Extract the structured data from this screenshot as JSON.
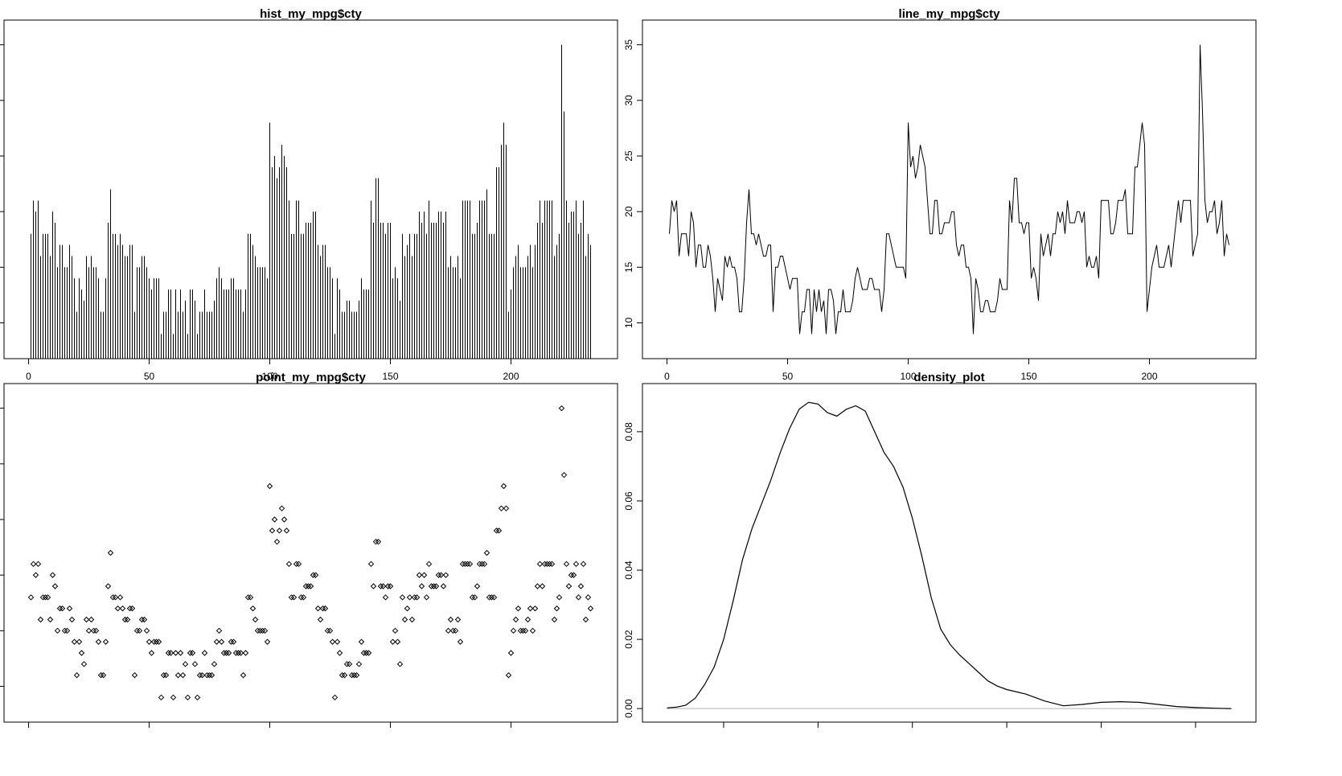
{
  "panels": {
    "hist": {
      "title": "hist_my_mpg$cty"
    },
    "line": {
      "title": "line_my_mpg$cty"
    },
    "point": {
      "title": "point_my_mpg$cty"
    },
    "density": {
      "title": "density_plot"
    }
  },
  "chart_data": [
    {
      "type": "bar",
      "title": "hist_my_mpg$cty",
      "x_source": "index",
      "series_ref": "cty",
      "xlim": [
        0,
        234
      ],
      "ylim": [
        8,
        36
      ],
      "x_ticks": [
        0,
        50,
        100,
        150,
        200
      ],
      "y_ticks": [],
      "x_tick_labels": [
        "0",
        "50",
        "100",
        "150",
        "200"
      ]
    },
    {
      "type": "line",
      "title": "line_my_mpg$cty",
      "x_source": "index",
      "series_ref": "cty",
      "xlim": [
        0,
        234
      ],
      "ylim": [
        8,
        36
      ],
      "x_ticks": [
        0,
        50,
        100,
        150,
        200
      ],
      "y_ticks": [
        10,
        15,
        20,
        25,
        30,
        35
      ],
      "x_tick_labels": [
        "0",
        "50",
        "100",
        "150",
        "200"
      ],
      "y_tick_labels": [
        "10",
        "15",
        "20",
        "25",
        "30",
        "35"
      ]
    },
    {
      "type": "scatter",
      "title": "point_my_mpg$cty",
      "x_source": "index",
      "series_ref": "cty",
      "xlim": [
        0,
        234
      ],
      "ylim": [
        8,
        36
      ],
      "x_ticks": [
        0,
        50,
        100,
        150,
        200
      ],
      "y_ticks": [],
      "marker": "diamond"
    },
    {
      "type": "area",
      "title": "density_plot",
      "xlim": [
        7.0,
        36.9
      ],
      "ylim": [
        0,
        0.09
      ],
      "x_ticks": [],
      "y_ticks": [
        0.0,
        0.02,
        0.04,
        0.06,
        0.08
      ],
      "y_tick_labels": [
        "0.00",
        "0.02",
        "0.04",
        "0.06",
        "0.08"
      ],
      "baseline_color": "#b0b0b0",
      "x": [
        7.0,
        7.5,
        8.0,
        8.5,
        9.0,
        9.5,
        10.0,
        10.5,
        11.0,
        11.5,
        12.0,
        12.5,
        13.0,
        13.5,
        14.0,
        14.5,
        15.0,
        15.5,
        16.0,
        16.5,
        17.0,
        17.5,
        18.0,
        18.5,
        19.0,
        19.5,
        20.0,
        20.5,
        21.0,
        21.5,
        22.0,
        22.5,
        23.0,
        23.5,
        24.0,
        24.5,
        25.0,
        26.0,
        27.0,
        28.0,
        29.0,
        30.0,
        31.0,
        32.0,
        33.0,
        34.0,
        35.0,
        36.0,
        36.9
      ],
      "y": [
        0.0002,
        0.0004,
        0.001,
        0.003,
        0.007,
        0.012,
        0.02,
        0.031,
        0.043,
        0.052,
        0.059,
        0.066,
        0.074,
        0.081,
        0.0865,
        0.0885,
        0.088,
        0.0855,
        0.0845,
        0.0865,
        0.0875,
        0.086,
        0.08,
        0.074,
        0.07,
        0.064,
        0.055,
        0.044,
        0.032,
        0.023,
        0.0185,
        0.0155,
        0.013,
        0.0105,
        0.008,
        0.0065,
        0.0055,
        0.0042,
        0.0022,
        0.0008,
        0.0012,
        0.0018,
        0.002,
        0.0018,
        0.0012,
        0.0006,
        0.0003,
        0.0001,
        0.0
      ]
    }
  ],
  "cty": [
    18,
    21,
    20,
    21,
    16,
    18,
    18,
    18,
    16,
    20,
    19,
    15,
    17,
    17,
    15,
    15,
    17,
    16,
    14,
    11,
    14,
    13,
    12,
    16,
    15,
    16,
    15,
    15,
    14,
    11,
    11,
    14,
    19,
    22,
    18,
    18,
    17,
    18,
    17,
    16,
    16,
    17,
    17,
    11,
    15,
    15,
    16,
    16,
    15,
    14,
    13,
    14,
    14,
    14,
    9,
    11,
    11,
    13,
    13,
    9,
    13,
    11,
    13,
    11,
    12,
    9,
    13,
    13,
    12,
    9,
    11,
    11,
    13,
    11,
    11,
    11,
    12,
    14,
    15,
    14,
    13,
    13,
    13,
    14,
    14,
    13,
    13,
    13,
    11,
    13,
    18,
    18,
    17,
    16,
    15,
    15,
    15,
    15,
    14,
    28,
    24,
    25,
    23,
    24,
    26,
    25,
    24,
    21,
    18,
    18,
    21,
    21,
    18,
    18,
    19,
    19,
    19,
    20,
    20,
    17,
    16,
    17,
    17,
    15,
    15,
    14,
    9,
    14,
    13,
    11,
    11,
    12,
    12,
    11,
    11,
    11,
    12,
    14,
    13,
    13,
    13,
    21,
    19,
    23,
    23,
    19,
    19,
    18,
    19,
    19,
    14,
    15,
    14,
    12,
    18,
    16,
    17,
    18,
    16,
    18,
    18,
    20,
    19,
    20,
    18,
    21,
    19,
    19,
    19,
    20,
    20,
    19,
    20,
    15,
    16,
    15,
    15,
    16,
    14,
    21,
    21,
    21,
    21,
    18,
    18,
    19,
    21,
    21,
    21,
    22,
    18,
    18,
    18,
    24,
    24,
    26,
    28,
    26,
    11,
    13,
    15,
    16,
    17,
    15,
    15,
    15,
    16,
    17,
    15,
    17,
    19,
    21,
    19,
    21,
    21,
    21,
    21,
    16,
    17,
    18,
    35,
    29,
    21,
    19,
    20,
    20,
    21,
    18,
    19,
    21,
    16,
    18,
    17
  ]
}
